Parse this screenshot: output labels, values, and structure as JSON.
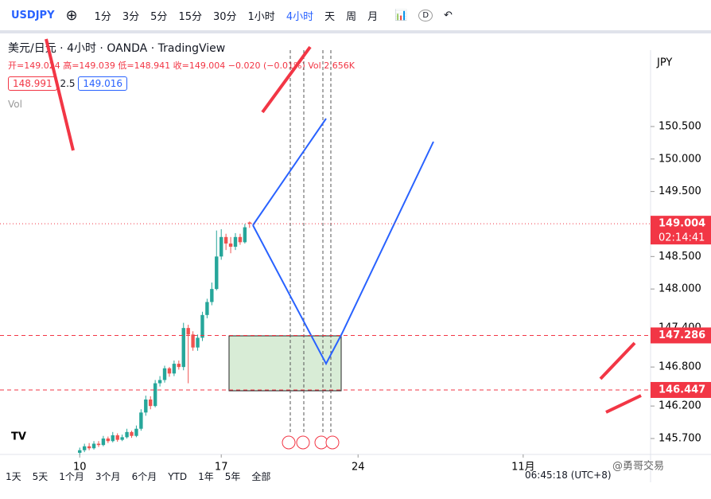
{
  "toolbar": {
    "symbol": "USDJPY",
    "intervals": [
      "1分",
      "3分",
      "5分",
      "15分",
      "30分",
      "1小时",
      "4小时",
      "天",
      "周",
      "月"
    ],
    "badge": "D"
  },
  "legend": {
    "title": "美元/日元 · 4小时 · OANDA · TradingView",
    "ohlc": "开=149.024 高=149.039 低=148.941 收=149.004 −0.020 (−0.01%)",
    "vol": "Vol 2.656K",
    "bid": "148.991",
    "spread": "2.5",
    "ask": "149.016",
    "vol_label": "Vol"
  },
  "chart_data": {
    "type": "candlestick",
    "currency": "JPY",
    "up_color": "#26a69a",
    "down_color": "#ef5350",
    "xlim": [
      -16.9,
      121
    ],
    "xticks": [
      {
        "value": 0,
        "label": "10"
      },
      {
        "value": 30,
        "label": "17"
      },
      {
        "value": 59,
        "label": "24"
      },
      {
        "value": 94,
        "label": "11月"
      }
    ],
    "ylim": [
      145.455,
      151.675
    ],
    "yticks": [
      {
        "value": 145.7,
        "label": "145.700"
      },
      {
        "value": 146.2,
        "label": "146.200"
      },
      {
        "value": 146.8,
        "label": "146.800"
      },
      {
        "value": 147.4,
        "label": "147.400"
      },
      {
        "value": 148,
        "label": "148.000"
      },
      {
        "value": 148.5,
        "label": "148.500"
      },
      {
        "value": 149.5,
        "label": "149.500"
      },
      {
        "value": 150,
        "label": "150.000"
      },
      {
        "value": 150.5,
        "label": "150.500"
      }
    ],
    "open": [
      145.48,
      145.52,
      145.58,
      145.55,
      145.62,
      145.6,
      145.7,
      145.66,
      145.75,
      145.68,
      145.72,
      145.8,
      145.74,
      145.85,
      146.1,
      146.3,
      146.2,
      146.55,
      146.6,
      146.78,
      146.7,
      146.85,
      146.8,
      147.4,
      147.3,
      147.1,
      147.25,
      147.6,
      147.8,
      148,
      148.5,
      148.8,
      148.7,
      148.65,
      148.8,
      148.72,
      149.024
    ],
    "high": [
      145.56,
      145.62,
      145.63,
      145.66,
      145.66,
      145.74,
      145.73,
      145.8,
      145.78,
      145.76,
      145.85,
      145.82,
      145.9,
      146.15,
      146.36,
      146.35,
      146.6,
      146.66,
      146.82,
      146.8,
      146.9,
      146.9,
      147.48,
      147.45,
      147.35,
      147.3,
      147.65,
      147.85,
      148.1,
      148.9,
      148.92,
      148.85,
      148.8,
      148.86,
      148.85,
      149,
      149.039
    ],
    "low": [
      145.45,
      145.49,
      145.52,
      145.53,
      145.57,
      145.58,
      145.63,
      145.64,
      145.65,
      145.66,
      145.7,
      145.71,
      145.72,
      145.82,
      146.05,
      146.15,
      146.18,
      146.5,
      146.56,
      146.65,
      146.66,
      146.76,
      146.75,
      146.55,
      147.05,
      147.05,
      147.2,
      147.55,
      147.75,
      147.98,
      148.45,
      148.6,
      148.55,
      148.6,
      148.68,
      148.7,
      148.941
    ],
    "close": [
      145.52,
      145.58,
      145.55,
      145.62,
      145.6,
      145.7,
      145.66,
      145.75,
      145.68,
      145.72,
      145.8,
      145.74,
      145.85,
      146.1,
      146.3,
      146.2,
      146.55,
      146.6,
      146.78,
      146.7,
      146.85,
      146.8,
      147.4,
      147.3,
      147.1,
      147.25,
      147.6,
      147.8,
      148,
      148.5,
      148.8,
      148.7,
      148.65,
      148.8,
      148.72,
      148.95,
      149.004
    ],
    "price_lines": [
      {
        "value": 149.004,
        "color": "#f23645",
        "countdown": "02:14:41"
      },
      {
        "value": 147.286,
        "color": "#f23645"
      },
      {
        "value": 146.447,
        "color": "#f23645"
      }
    ]
  },
  "watermark": "@勇哥交易",
  "bottom_bar": {
    "ranges": [
      "1天",
      "5天",
      "1个月",
      "3个月",
      "6个月",
      "YTD",
      "1年",
      "5年",
      "全部"
    ],
    "clock": "06:45:18 (UTC+8)"
  }
}
